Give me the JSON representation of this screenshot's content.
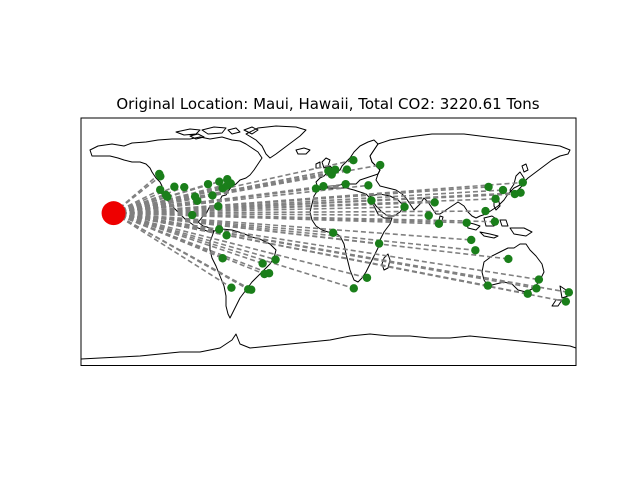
{
  "title": "Original Location: Maui, Hawaii, Total CO2: 3220.61 Tons",
  "colors": {
    "origin": "#ee0000",
    "destination": "#1a7f1a",
    "route": "#808080",
    "coastline": "#000000",
    "frame": "#000000"
  },
  "map": {
    "projection": "equirectangular",
    "lon_range": [
      -180,
      180
    ],
    "lat_range": [
      -90,
      90
    ]
  },
  "origin": {
    "lon": -156.3,
    "lat": 20.8
  },
  "destinations": [
    {
      "lon": -122.4,
      "lat": 37.8
    },
    {
      "lon": -118.2,
      "lat": 34.0
    },
    {
      "lon": -117.2,
      "lat": 32.7
    },
    {
      "lon": -123.1,
      "lat": 49.3
    },
    {
      "lon": -122.3,
      "lat": 47.6
    },
    {
      "lon": -112.1,
      "lat": 40.0
    },
    {
      "lon": -104.9,
      "lat": 39.7
    },
    {
      "lon": -97.0,
      "lat": 32.8
    },
    {
      "lon": -95.4,
      "lat": 29.8
    },
    {
      "lon": -87.6,
      "lat": 41.9
    },
    {
      "lon": -84.4,
      "lat": 33.7
    },
    {
      "lon": -80.2,
      "lat": 25.8
    },
    {
      "lon": -77.0,
      "lat": 38.9
    },
    {
      "lon": -74.0,
      "lat": 40.7
    },
    {
      "lon": -71.1,
      "lat": 42.4
    },
    {
      "lon": -79.4,
      "lat": 43.7
    },
    {
      "lon": -73.6,
      "lat": 45.5
    },
    {
      "lon": -99.1,
      "lat": 19.4
    },
    {
      "lon": -79.5,
      "lat": 9.0
    },
    {
      "lon": -74.1,
      "lat": 4.7
    },
    {
      "lon": -77.0,
      "lat": -12.0
    },
    {
      "lon": -70.6,
      "lat": -33.4
    },
    {
      "lon": -58.4,
      "lat": -34.6
    },
    {
      "lon": -46.6,
      "lat": -23.5
    },
    {
      "lon": -43.2,
      "lat": -22.9
    },
    {
      "lon": -47.9,
      "lat": -15.8
    },
    {
      "lon": -38.5,
      "lat": -13.0
    },
    {
      "lon": -56.2,
      "lat": -34.9
    },
    {
      "lon": -0.1,
      "lat": 51.5
    },
    {
      "lon": 2.35,
      "lat": 48.9
    },
    {
      "lon": -3.7,
      "lat": 40.4
    },
    {
      "lon": 12.5,
      "lat": 41.9
    },
    {
      "lon": 13.4,
      "lat": 52.5
    },
    {
      "lon": 4.9,
      "lat": 52.4
    },
    {
      "lon": 18.1,
      "lat": 59.3
    },
    {
      "lon": 37.6,
      "lat": 55.8
    },
    {
      "lon": 29.0,
      "lat": 41.0
    },
    {
      "lon": -9.1,
      "lat": 38.7
    },
    {
      "lon": 31.2,
      "lat": 30.0
    },
    {
      "lon": 3.4,
      "lat": 6.5
    },
    {
      "lon": 36.8,
      "lat": -1.3
    },
    {
      "lon": 28.0,
      "lat": -26.2
    },
    {
      "lon": 18.4,
      "lat": -33.9
    },
    {
      "lon": 55.3,
      "lat": 25.3
    },
    {
      "lon": 72.9,
      "lat": 19.1
    },
    {
      "lon": 77.2,
      "lat": 28.6
    },
    {
      "lon": 80.3,
      "lat": 13.1
    },
    {
      "lon": 100.5,
      "lat": 13.8
    },
    {
      "lon": 103.8,
      "lat": 1.3
    },
    {
      "lon": 106.8,
      "lat": -6.2
    },
    {
      "lon": 114.2,
      "lat": 22.3
    },
    {
      "lon": 121.5,
      "lat": 31.2
    },
    {
      "lon": 116.4,
      "lat": 39.9
    },
    {
      "lon": 126.9,
      "lat": 37.6
    },
    {
      "lon": 139.7,
      "lat": 35.7
    },
    {
      "lon": 135.5,
      "lat": 34.7
    },
    {
      "lon": 121.0,
      "lat": 14.6
    },
    {
      "lon": 141.3,
      "lat": 43.1
    },
    {
      "lon": 151.2,
      "lat": -33.9
    },
    {
      "lon": 144.9,
      "lat": -37.8
    },
    {
      "lon": 153.0,
      "lat": -27.5
    },
    {
      "lon": 115.9,
      "lat": -31.9
    },
    {
      "lon": 174.8,
      "lat": -36.8
    },
    {
      "lon": 172.6,
      "lat": -43.5
    },
    {
      "lon": 130.8,
      "lat": -12.5
    }
  ]
}
